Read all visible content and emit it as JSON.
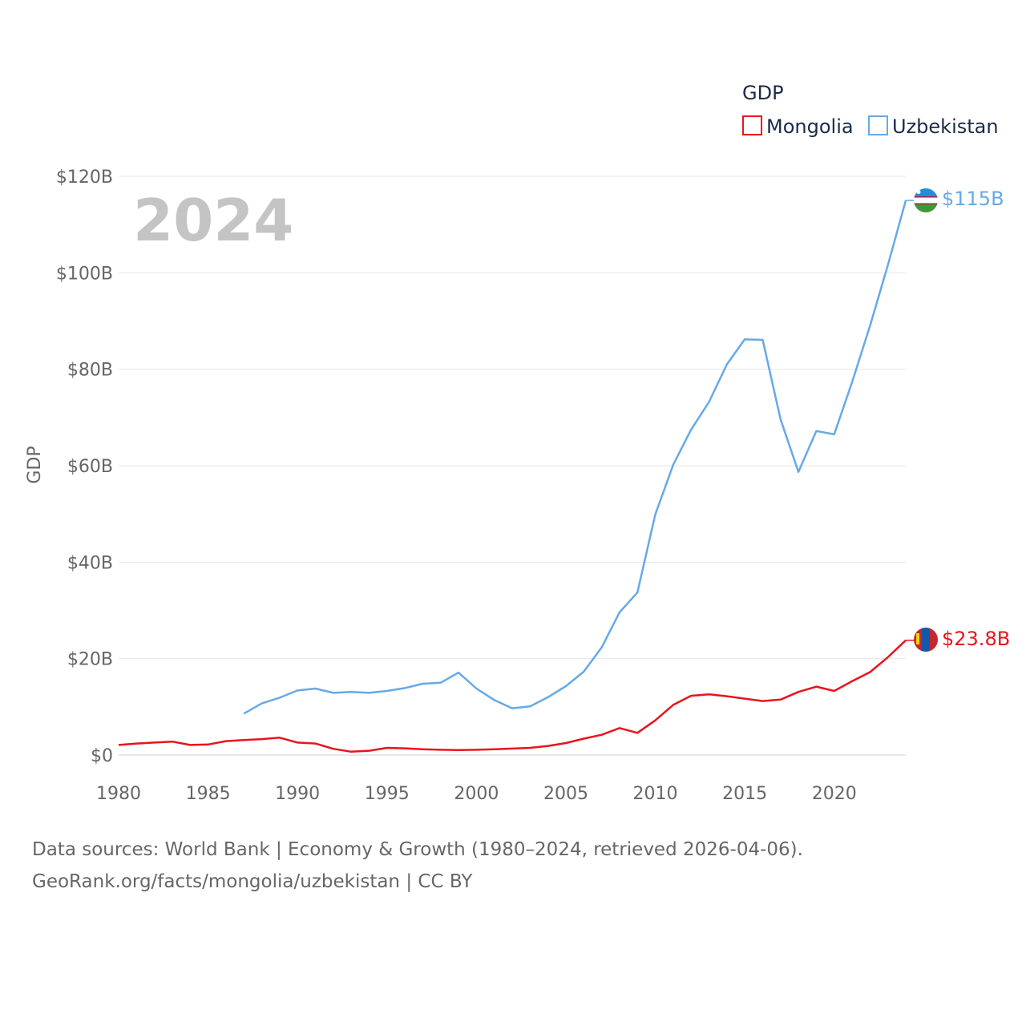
{
  "chart_data": {
    "type": "line",
    "ylabel": "GDP",
    "xlabel": "",
    "year_label": "2024",
    "ylim": [
      0,
      120
    ],
    "xlim": [
      1980,
      2024
    ],
    "y_ticks": [
      {
        "value": 0,
        "label": "$0"
      },
      {
        "value": 20,
        "label": "$20B"
      },
      {
        "value": 40,
        "label": "$40B"
      },
      {
        "value": 60,
        "label": "$60B"
      },
      {
        "value": 80,
        "label": "$80B"
      },
      {
        "value": 100,
        "label": "$100B"
      },
      {
        "value": 120,
        "label": "$120B"
      }
    ],
    "x_ticks": [
      {
        "value": 1980,
        "label": "1980"
      },
      {
        "value": 1985,
        "label": "1985"
      },
      {
        "value": 1990,
        "label": "1990"
      },
      {
        "value": 1995,
        "label": "1995"
      },
      {
        "value": 2000,
        "label": "2000"
      },
      {
        "value": 2005,
        "label": "2005"
      },
      {
        "value": 2010,
        "label": "2010"
      },
      {
        "value": 2015,
        "label": "2015"
      },
      {
        "value": 2020,
        "label": "2020"
      }
    ],
    "legend": {
      "title": "GDP",
      "position": "top-right"
    },
    "series": [
      {
        "name": "Mongolia",
        "color": "#e8141c",
        "end_label": "$23.8B",
        "x": [
          1980,
          1981,
          1982,
          1983,
          1984,
          1985,
          1986,
          1987,
          1988,
          1989,
          1990,
          1991,
          1992,
          1993,
          1994,
          1995,
          1996,
          1997,
          1998,
          1999,
          2000,
          2001,
          2002,
          2003,
          2004,
          2005,
          2006,
          2007,
          2008,
          2009,
          2010,
          2011,
          2012,
          2013,
          2014,
          2015,
          2016,
          2017,
          2018,
          2019,
          2020,
          2021,
          2022,
          2023,
          2024
        ],
        "values": [
          2.1,
          2.4,
          2.6,
          2.8,
          2.1,
          2.2,
          2.9,
          3.1,
          3.3,
          3.6,
          2.6,
          2.4,
          1.3,
          0.7,
          0.9,
          1.5,
          1.4,
          1.2,
          1.1,
          1.05,
          1.1,
          1.2,
          1.35,
          1.5,
          1.9,
          2.5,
          3.4,
          4.2,
          5.6,
          4.6,
          7.2,
          10.4,
          12.3,
          12.6,
          12.2,
          11.7,
          11.2,
          11.5,
          13.1,
          14.2,
          13.3,
          15.3,
          17.2,
          20.3,
          23.8
        ]
      },
      {
        "name": "Uzbekistan",
        "color": "#66a9e8",
        "end_label": "$115B",
        "x": [
          1987,
          1988,
          1989,
          1990,
          1991,
          1992,
          1993,
          1994,
          1995,
          1996,
          1997,
          1998,
          1999,
          2000,
          2001,
          2002,
          2003,
          2004,
          2005,
          2006,
          2007,
          2008,
          2009,
          2010,
          2011,
          2012,
          2013,
          2014,
          2015,
          2016,
          2017,
          2018,
          2019,
          2020,
          2021,
          2022,
          2023,
          2024
        ],
        "values": [
          8.6,
          10.7,
          11.9,
          13.4,
          13.8,
          12.9,
          13.1,
          12.9,
          13.3,
          13.9,
          14.8,
          15.0,
          17.1,
          13.8,
          11.4,
          9.7,
          10.1,
          12.0,
          14.3,
          17.3,
          22.3,
          29.6,
          33.7,
          49.9,
          60.2,
          67.5,
          73.2,
          81.0,
          86.2,
          86.1,
          69.6,
          58.7,
          67.2,
          66.5,
          77.3,
          89.0,
          101.6,
          115.0
        ]
      }
    ]
  },
  "footer": {
    "line1": "Data sources: World Bank | Economy & Growth (1980–2024, retrieved 2026-04-06).",
    "line2": "GeoRank.org/facts/mongolia/uzbekistan | CC BY"
  }
}
